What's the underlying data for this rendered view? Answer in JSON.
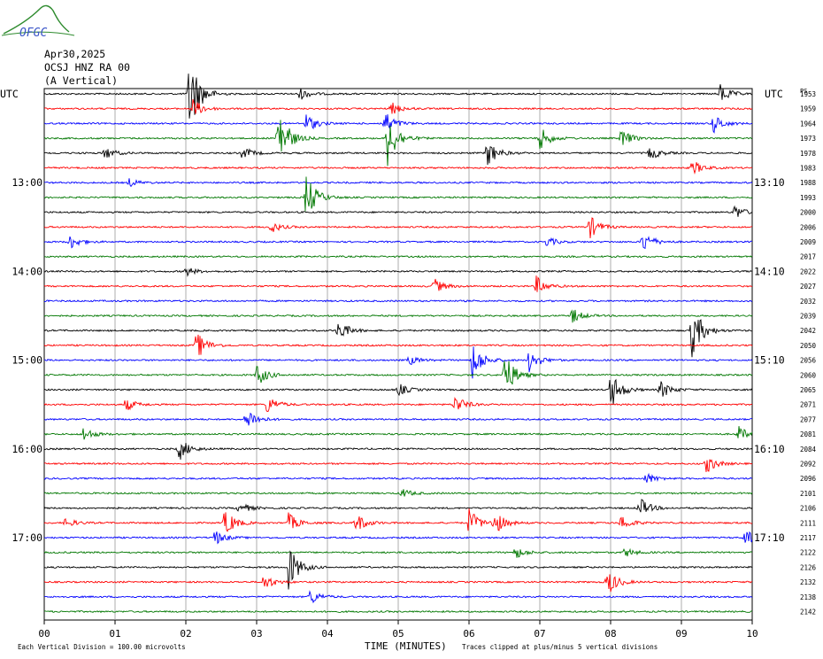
{
  "header": {
    "logo_text": "OFGC",
    "date": "Apr30,2025",
    "station": "OCSJ HNZ RA 00",
    "component": "(A Vertical)"
  },
  "chart_data": {
    "type": "line",
    "subtype": "helicorder-seismogram",
    "left_axis_title": "UTC",
    "right_axis_title": "UTC",
    "pst_header": "PS",
    "xlabel": "TIME (MINUTES)",
    "xlim": [
      0,
      10
    ],
    "x_tick_labels": [
      "00",
      "01",
      "02",
      "03",
      "04",
      "05",
      "06",
      "07",
      "08",
      "09",
      "10"
    ],
    "left_time_labels": [
      "13:00",
      "14:00",
      "15:00",
      "16:00",
      "17:00"
    ],
    "right_time_labels": [
      "13:10",
      "14:10",
      "15:10",
      "16:10",
      "17:10"
    ],
    "right_row_labels": [
      "1953",
      "1959",
      "1964",
      "1973",
      "1978",
      "1983",
      "1988",
      "1993",
      "2000",
      "2006",
      "2009",
      "2017",
      "2022",
      "2027",
      "2032",
      "2039",
      "2042",
      "2050",
      "2056",
      "2060",
      "2065",
      "2071",
      "2077",
      "2081",
      "2084",
      "2092",
      "2096",
      "2101",
      "2106",
      "2111",
      "2117",
      "2122",
      "2126",
      "2132",
      "2138",
      "2142"
    ],
    "trace_colors": [
      "#000000",
      "#ff0000",
      "#0000ff",
      "#007700"
    ],
    "scale_note": "Each Vertical Division =  100.00 microvolts",
    "clip_note": "Traces clipped at plus/minus 5 vertical divisions",
    "events": [
      {
        "row": 0,
        "minute": 2.05,
        "amp": 5.5
      },
      {
        "row": 0,
        "minute": 3.6,
        "amp": 0.8
      },
      {
        "row": 0,
        "minute": 9.55,
        "amp": 1.2
      },
      {
        "row": 1,
        "minute": 2.1,
        "amp": 1.2
      },
      {
        "row": 1,
        "minute": 4.9,
        "amp": 0.8
      },
      {
        "row": 2,
        "minute": 3.7,
        "amp": 1.2
      },
      {
        "row": 2,
        "minute": 4.8,
        "amp": 1.6
      },
      {
        "row": 2,
        "minute": 9.45,
        "amp": 1.2
      },
      {
        "row": 3,
        "minute": 3.3,
        "amp": 4.5
      },
      {
        "row": 3,
        "minute": 4.85,
        "amp": 3.5
      },
      {
        "row": 3,
        "minute": 7.0,
        "amp": 1.5
      },
      {
        "row": 3,
        "minute": 8.15,
        "amp": 1.2
      },
      {
        "row": 4,
        "minute": 0.85,
        "amp": 0.8
      },
      {
        "row": 4,
        "minute": 2.8,
        "amp": 0.8
      },
      {
        "row": 4,
        "minute": 6.25,
        "amp": 1.8
      },
      {
        "row": 4,
        "minute": 8.55,
        "amp": 0.9
      },
      {
        "row": 5,
        "minute": 9.15,
        "amp": 1.0
      },
      {
        "row": 6,
        "minute": 1.2,
        "amp": 0.5
      },
      {
        "row": 7,
        "minute": 3.7,
        "amp": 3.0
      },
      {
        "row": 8,
        "minute": 9.75,
        "amp": 0.9
      },
      {
        "row": 9,
        "minute": 3.2,
        "amp": 0.7
      },
      {
        "row": 9,
        "minute": 7.7,
        "amp": 1.5
      },
      {
        "row": 10,
        "minute": 0.35,
        "amp": 1.0
      },
      {
        "row": 10,
        "minute": 7.1,
        "amp": 0.6
      },
      {
        "row": 10,
        "minute": 8.45,
        "amp": 1.4
      },
      {
        "row": 12,
        "minute": 2.0,
        "amp": 0.6
      },
      {
        "row": 13,
        "minute": 5.5,
        "amp": 1.0
      },
      {
        "row": 13,
        "minute": 6.95,
        "amp": 1.2
      },
      {
        "row": 15,
        "minute": 7.45,
        "amp": 1.0
      },
      {
        "row": 16,
        "minute": 4.15,
        "amp": 1.4
      },
      {
        "row": 16,
        "minute": 9.15,
        "amp": 3.5
      },
      {
        "row": 17,
        "minute": 2.15,
        "amp": 1.8
      },
      {
        "row": 18,
        "minute": 5.15,
        "amp": 0.6
      },
      {
        "row": 18,
        "minute": 6.05,
        "amp": 2.5
      },
      {
        "row": 18,
        "minute": 6.85,
        "amp": 1.5
      },
      {
        "row": 19,
        "minute": 3.0,
        "amp": 1.5
      },
      {
        "row": 19,
        "minute": 6.5,
        "amp": 3.0
      },
      {
        "row": 20,
        "minute": 5.0,
        "amp": 0.8
      },
      {
        "row": 20,
        "minute": 8.0,
        "amp": 2.5
      },
      {
        "row": 20,
        "minute": 8.7,
        "amp": 1.2
      },
      {
        "row": 21,
        "minute": 1.15,
        "amp": 0.8
      },
      {
        "row": 21,
        "minute": 3.15,
        "amp": 1.2
      },
      {
        "row": 21,
        "minute": 5.8,
        "amp": 1.2
      },
      {
        "row": 22,
        "minute": 2.85,
        "amp": 1.6
      },
      {
        "row": 23,
        "minute": 0.55,
        "amp": 0.9
      },
      {
        "row": 23,
        "minute": 9.8,
        "amp": 1.0
      },
      {
        "row": 24,
        "minute": 1.9,
        "amp": 1.5
      },
      {
        "row": 25,
        "minute": 9.35,
        "amp": 1.2
      },
      {
        "row": 26,
        "minute": 8.5,
        "amp": 0.7
      },
      {
        "row": 27,
        "minute": 5.05,
        "amp": 0.6
      },
      {
        "row": 28,
        "minute": 2.75,
        "amp": 0.8
      },
      {
        "row": 28,
        "minute": 8.4,
        "amp": 1.4
      },
      {
        "row": 29,
        "minute": 0.3,
        "amp": 0.6
      },
      {
        "row": 29,
        "minute": 2.55,
        "amp": 1.8
      },
      {
        "row": 29,
        "minute": 3.45,
        "amp": 1.2
      },
      {
        "row": 29,
        "minute": 4.4,
        "amp": 1.3
      },
      {
        "row": 29,
        "minute": 6.0,
        "amp": 1.8
      },
      {
        "row": 29,
        "minute": 6.35,
        "amp": 1.6
      },
      {
        "row": 29,
        "minute": 8.15,
        "amp": 1.0
      },
      {
        "row": 30,
        "minute": 2.4,
        "amp": 1.0
      },
      {
        "row": 30,
        "minute": 9.9,
        "amp": 1.0
      },
      {
        "row": 31,
        "minute": 6.65,
        "amp": 0.8
      },
      {
        "row": 31,
        "minute": 8.2,
        "amp": 0.6
      },
      {
        "row": 32,
        "minute": 3.45,
        "amp": 3.0
      },
      {
        "row": 33,
        "minute": 3.1,
        "amp": 1.0
      },
      {
        "row": 33,
        "minute": 7.95,
        "amp": 1.8
      },
      {
        "row": 34,
        "minute": 3.75,
        "amp": 1.0
      }
    ]
  }
}
